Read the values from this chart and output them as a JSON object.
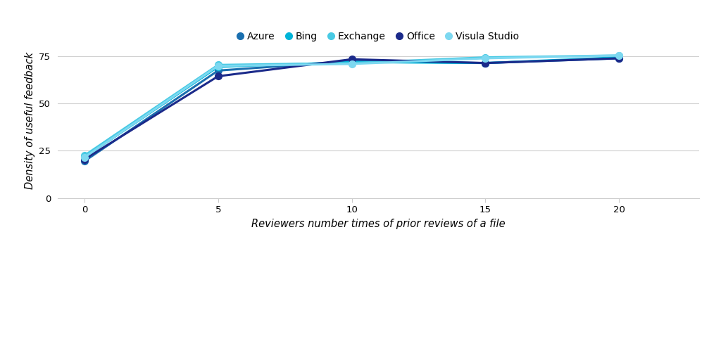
{
  "series": [
    {
      "name": "Azure",
      "color": "#1a6faf",
      "marker": "o",
      "x": [
        0,
        5,
        10,
        15,
        20
      ],
      "y": [
        19.5,
        67.5,
        72.5,
        71.5,
        74.0
      ]
    },
    {
      "name": "Bing",
      "color": "#00b4d8",
      "marker": "o",
      "x": [
        0,
        5,
        10,
        15,
        20
      ],
      "y": [
        21.5,
        69.5,
        72.0,
        71.5,
        74.5
      ]
    },
    {
      "name": "Exchange",
      "color": "#48cae4",
      "marker": "o",
      "x": [
        0,
        5,
        10,
        15,
        20
      ],
      "y": [
        22.5,
        70.5,
        71.5,
        74.5,
        75.5
      ]
    },
    {
      "name": "Office",
      "color": "#1b2a8a",
      "marker": "o",
      "x": [
        0,
        5,
        10,
        15,
        20
      ],
      "y": [
        20.5,
        64.5,
        73.5,
        71.5,
        74.0
      ]
    },
    {
      "name": "Visula Studio",
      "color": "#7dd8f0",
      "marker": "o",
      "x": [
        0,
        5,
        10,
        15,
        20
      ],
      "y": [
        21.5,
        70.0,
        71.0,
        74.0,
        75.5
      ]
    }
  ],
  "xlabel": "Reviewers number times of prior reviews of a file",
  "ylabel": "Density of useful feedback",
  "xlim": [
    -1,
    23
  ],
  "ylim": [
    0,
    82
  ],
  "xticks": [
    0,
    5,
    10,
    15,
    20
  ],
  "yticks": [
    0,
    25,
    50,
    75
  ],
  "background_color": "#ffffff",
  "grid_color": "#d0d0d0",
  "legend_ncol": 5,
  "marker_size": 7,
  "line_width": 2.2,
  "xlabel_fontsize": 10.5,
  "ylabel_fontsize": 10.5,
  "tick_fontsize": 9.5,
  "legend_fontsize": 10
}
